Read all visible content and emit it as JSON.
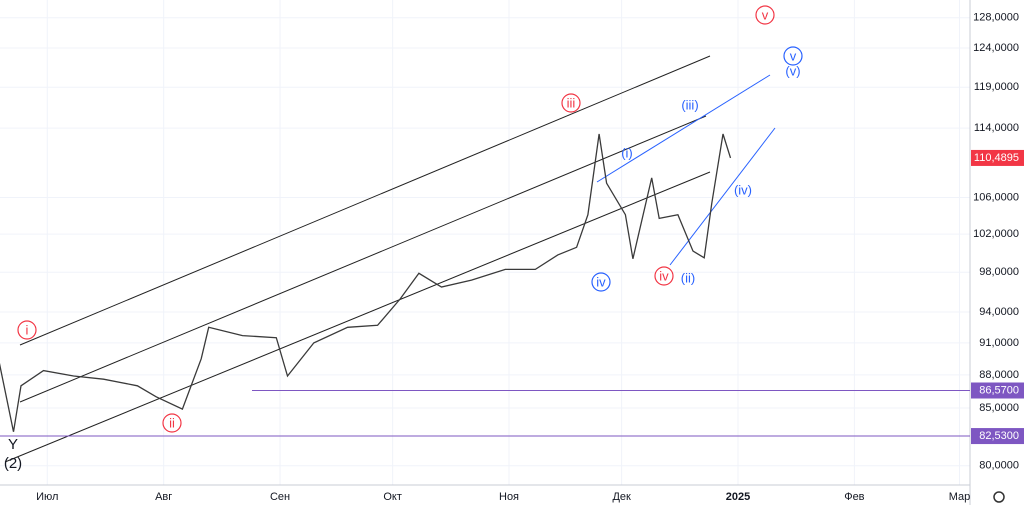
{
  "chart_data": {
    "type": "line",
    "log": true,
    "grid": true,
    "color": "#3a3a3a",
    "x": [
      -13,
      -9,
      -7,
      -1,
      7,
      15,
      24,
      29,
      36,
      41,
      43,
      52,
      61,
      64,
      71,
      80,
      88,
      94,
      99,
      105,
      113,
      122,
      130,
      136,
      141,
      144,
      147,
      149,
      154,
      156,
      161,
      163,
      168,
      172,
      175,
      177,
      180,
      182
    ],
    "values": [
      89.5,
      82.9,
      87.0,
      88.4,
      87.9,
      87.6,
      87.0,
      86.0,
      84.9,
      89.5,
      92.5,
      91.7,
      91.5,
      87.9,
      91.0,
      92.5,
      92.7,
      95.3,
      97.9,
      96.5,
      97.2,
      98.3,
      98.3,
      99.8,
      100.6,
      104.1,
      113.3,
      107.6,
      104.1,
      99.4,
      108.2,
      103.7,
      104.1,
      100.2,
      99.5,
      105.3,
      113.3,
      110.4895
    ],
    "xlim": [
      -12.6,
      245.8
    ],
    "xticks": [
      {
        "value": 0,
        "label": "Июл"
      },
      {
        "value": 31,
        "label": "Авг"
      },
      {
        "value": 62,
        "label": "Сен"
      },
      {
        "value": 92,
        "label": "Окт"
      },
      {
        "value": 123,
        "label": "Ноя"
      },
      {
        "value": 153,
        "label": "Дек"
      },
      {
        "value": 184,
        "label": "2025"
      },
      {
        "value": 215,
        "label": "Фев"
      },
      {
        "value": 243,
        "label": "Мар"
      }
    ],
    "ylim": [
      78.4,
      130.4
    ],
    "yticks": [
      {
        "value": 80,
        "label": "80,0000"
      },
      {
        "value": 85,
        "label": "85,0000"
      },
      {
        "value": 88,
        "label": "88,0000"
      },
      {
        "value": 91,
        "label": "91,0000"
      },
      {
        "value": 94,
        "label": "94,0000"
      },
      {
        "value": 98,
        "label": "98,0000"
      },
      {
        "value": 102,
        "label": "102,0000"
      },
      {
        "value": 106,
        "label": "106,0000"
      },
      {
        "value": 114,
        "label": "114,0000"
      },
      {
        "value": 119,
        "label": "119,0000"
      },
      {
        "value": 124,
        "label": "124,0000"
      },
      {
        "value": 128,
        "label": "128,0000"
      }
    ],
    "levels": [
      {
        "value": 86.57,
        "label": "86,5700"
      },
      {
        "value": 82.53,
        "label": "82,5300"
      }
    ],
    "last_price": {
      "value": 110.4895,
      "label": "110,4895"
    },
    "annotations": [
      "i",
      "ii",
      "iii",
      "iv",
      "v",
      "iv",
      "v",
      "(i)",
      "(ii)",
      "(iii)",
      "(iv)",
      "(v)",
      "Y",
      "(2)"
    ]
  }
}
